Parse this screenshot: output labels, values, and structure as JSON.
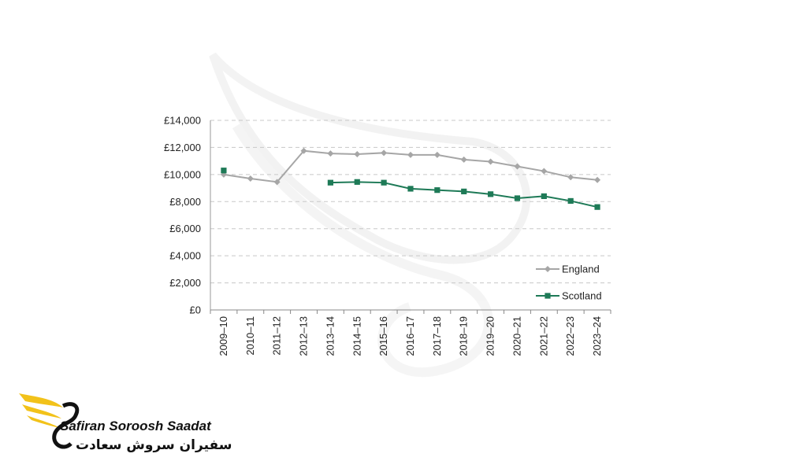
{
  "chart_data": {
    "type": "line",
    "categories": [
      "2009–10",
      "2010–11",
      "2011–12",
      "2012–13",
      "2013–14",
      "2014–15",
      "2015–16",
      "2016–17",
      "2017–18",
      "2018–19",
      "2019–20",
      "2020–21",
      "2021–22",
      "2022–23",
      "2023–24"
    ],
    "series": [
      {
        "name": "England",
        "color": "#a6a6a6",
        "marker": "diamond",
        "values": [
          10000,
          9700,
          9450,
          11750,
          11550,
          11500,
          11600,
          11450,
          11450,
          11100,
          10950,
          10600,
          10250,
          9800,
          9600
        ]
      },
      {
        "name": "Scotland",
        "color": "#1e7a57",
        "marker": "square",
        "values": [
          10300,
          null,
          null,
          null,
          9400,
          9450,
          9400,
          8950,
          8850,
          8750,
          8550,
          8250,
          8400,
          8050,
          7600
        ]
      }
    ],
    "yticks": [
      "£0",
      "£2,000",
      "£4,000",
      "£6,000",
      "£8,000",
      "£10,000",
      "£12,000",
      "£14,000"
    ],
    "ylim": [
      0,
      14000
    ],
    "grid": true,
    "legend_position": "bottom-right"
  },
  "logo": {
    "name_en": "Safiran Soroosh Saadat",
    "name_fa": "سفیران سروش سعادت",
    "accent_color": "#f2c21a"
  }
}
